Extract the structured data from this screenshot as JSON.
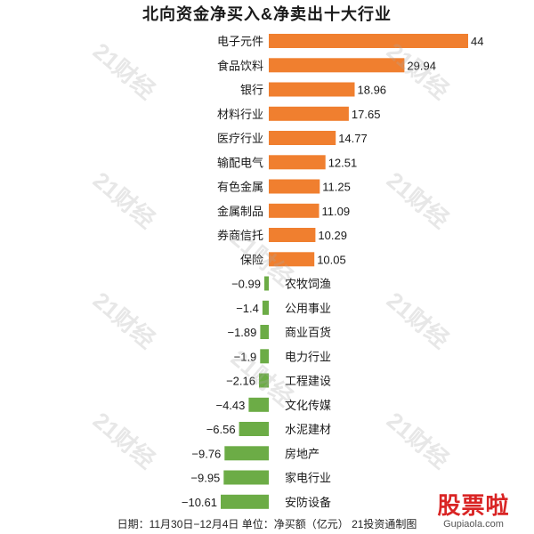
{
  "title": "北向资金净买入&净卖出十大行业",
  "footer": "日期：11月30日−12月4日  单位：净买额（亿元）  21投资通制图",
  "watermark": "21财经",
  "logo": {
    "brand": "股票啦",
    "site": "Gupiaola.com"
  },
  "colors": {
    "positive": "#f07f2f",
    "negative": "#6cac46",
    "text": "#1a1a1a"
  },
  "chart_data": {
    "type": "bar",
    "orientation": "horizontal",
    "categories": [
      "电子元件",
      "食品饮料",
      "银行",
      "材料行业",
      "医疗行业",
      "输配电气",
      "有色金属",
      "金属制品",
      "券商信托",
      "保险",
      "农牧饲渔",
      "公用事业",
      "商业百货",
      "电力行业",
      "工程建设",
      "文化传媒",
      "水泥建材",
      "房地产",
      "家电行业",
      "安防设备"
    ],
    "values": [
      44,
      29.94,
      18.96,
      17.65,
      14.77,
      12.51,
      11.25,
      11.09,
      10.29,
      10.05,
      -0.99,
      -1.4,
      -1.89,
      -1.9,
      -2.16,
      -4.43,
      -6.56,
      -9.76,
      -9.95,
      -10.61
    ],
    "value_labels": [
      "44",
      "29.94",
      "18.96",
      "17.65",
      "14.77",
      "12.51",
      "11.25",
      "11.09",
      "10.29",
      "10.05",
      "−0.99",
      "−1.4",
      "−1.89",
      "−1.9",
      "−2.16",
      "−4.43",
      "−6.56",
      "−9.76",
      "−9.95",
      "−10.61"
    ],
    "xlim": [
      -10.61,
      44
    ],
    "grid": false,
    "legend": "none"
  }
}
